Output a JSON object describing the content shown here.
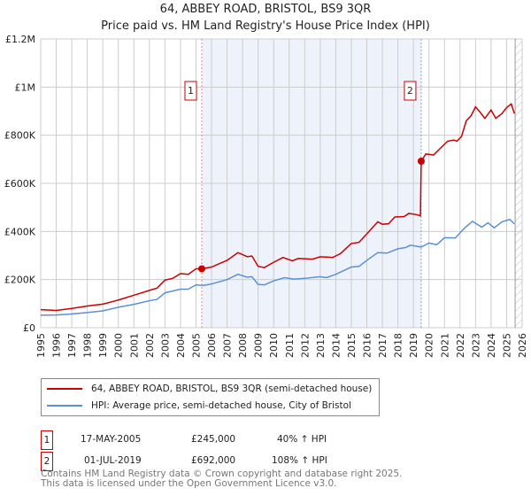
{
  "title": "64, ABBEY ROAD, BRISTOL, BS9 3QR",
  "subtitle": "Price paid vs. HM Land Registry's House Price Index (HPI)",
  "colors": {
    "property": "#cc0000",
    "hpi": "#5b8fd6",
    "shade": "#eef3fb",
    "grid": "#cccccc"
  },
  "legend": {
    "property": "64, ABBEY ROAD, BRISTOL, BS9 3QR (semi-detached house)",
    "hpi": "HPI: Average price, semi-detached house, City of Bristol"
  },
  "sales": [
    {
      "num": "1",
      "date": "17-MAY-2005",
      "price": "£245,000",
      "hpi": "40% ↑ HPI"
    },
    {
      "num": "2",
      "date": "01-JUL-2019",
      "price": "£692,000",
      "hpi": "108% ↑ HPI"
    }
  ],
  "footer": {
    "line1": "Contains HM Land Registry data © Crown copyright and database right 2025.",
    "line2": "This data is licensed under the Open Government Licence v3.0."
  },
  "chart_data": {
    "type": "line",
    "title": "64, ABBEY ROAD, BRISTOL, BS9 3QR",
    "xlim": [
      1995,
      2026
    ],
    "ylim": [
      0,
      1200000
    ],
    "xticks": [
      "1995",
      "1996",
      "1997",
      "1998",
      "1999",
      "2000",
      "2001",
      "2002",
      "2003",
      "2004",
      "2005",
      "2006",
      "2007",
      "2008",
      "2009",
      "2010",
      "2011",
      "2012",
      "2013",
      "2014",
      "2015",
      "2016",
      "2017",
      "2018",
      "2019",
      "2020",
      "2021",
      "2022",
      "2023",
      "2024",
      "2025",
      "2026"
    ],
    "yticks": [
      {
        "value": 0,
        "label": "£0"
      },
      {
        "value": 200000,
        "label": "£200K"
      },
      {
        "value": 400000,
        "label": "£400K"
      },
      {
        "value": 600000,
        "label": "£600K"
      },
      {
        "value": 800000,
        "label": "£800K"
      },
      {
        "value": 1000000,
        "label": "£1M"
      },
      {
        "value": 1200000,
        "label": "£1.2M"
      }
    ],
    "grid": true,
    "shaded_range": [
      2005.37,
      2019.5
    ],
    "forecast_hatch_from": 2025.55,
    "sale_markers": [
      {
        "label": "1",
        "x": 2005.37,
        "y": 245000
      },
      {
        "label": "2",
        "x": 2019.5,
        "y": 692000
      }
    ],
    "series": [
      {
        "name": "property",
        "points": [
          [
            1995,
            75000
          ],
          [
            1996,
            72000
          ],
          [
            1997,
            80000
          ],
          [
            1998,
            90000
          ],
          [
            1999,
            98000
          ],
          [
            2000,
            115000
          ],
          [
            2001,
            135000
          ],
          [
            2002,
            155000
          ],
          [
            2002.5,
            165000
          ],
          [
            2003,
            198000
          ],
          [
            2003.5,
            205000
          ],
          [
            2004,
            225000
          ],
          [
            2004.5,
            222000
          ],
          [
            2005,
            245000
          ],
          [
            2005.37,
            245000
          ],
          [
            2006,
            252000
          ],
          [
            2007,
            280000
          ],
          [
            2007.7,
            312000
          ],
          [
            2008.3,
            295000
          ],
          [
            2008.6,
            298000
          ],
          [
            2009,
            255000
          ],
          [
            2009.4,
            250000
          ],
          [
            2010,
            272000
          ],
          [
            2010.6,
            292000
          ],
          [
            2011.2,
            278000
          ],
          [
            2011.6,
            288000
          ],
          [
            2012.5,
            285000
          ],
          [
            2013,
            295000
          ],
          [
            2013.8,
            292000
          ],
          [
            2014.3,
            308000
          ],
          [
            2015,
            350000
          ],
          [
            2015.5,
            355000
          ],
          [
            2016,
            390000
          ],
          [
            2016.7,
            440000
          ],
          [
            2017,
            430000
          ],
          [
            2017.4,
            432000
          ],
          [
            2017.8,
            460000
          ],
          [
            2018.4,
            462000
          ],
          [
            2018.7,
            475000
          ],
          [
            2019.2,
            470000
          ],
          [
            2019.45,
            465000
          ],
          [
            2019.5,
            692000
          ],
          [
            2019.8,
            722000
          ],
          [
            2020.3,
            718000
          ],
          [
            2020.8,
            750000
          ],
          [
            2021.2,
            775000
          ],
          [
            2021.6,
            780000
          ],
          [
            2021.8,
            775000
          ],
          [
            2022.1,
            795000
          ],
          [
            2022.4,
            860000
          ],
          [
            2022.7,
            880000
          ],
          [
            2023,
            918000
          ],
          [
            2023.3,
            895000
          ],
          [
            2023.6,
            870000
          ],
          [
            2024,
            905000
          ],
          [
            2024.3,
            870000
          ],
          [
            2024.7,
            890000
          ],
          [
            2025,
            915000
          ],
          [
            2025.3,
            930000
          ],
          [
            2025.5,
            890000
          ]
        ]
      },
      {
        "name": "hpi",
        "points": [
          [
            1995,
            52000
          ],
          [
            1996,
            53000
          ],
          [
            1997,
            57000
          ],
          [
            1998,
            63000
          ],
          [
            1999,
            70000
          ],
          [
            2000,
            85000
          ],
          [
            2001,
            97000
          ],
          [
            2002,
            112000
          ],
          [
            2002.5,
            118000
          ],
          [
            2003,
            145000
          ],
          [
            2004,
            160000
          ],
          [
            2004.5,
            160000
          ],
          [
            2005,
            178000
          ],
          [
            2005.5,
            176000
          ],
          [
            2006,
            182000
          ],
          [
            2007,
            200000
          ],
          [
            2007.7,
            222000
          ],
          [
            2008.3,
            210000
          ],
          [
            2008.6,
            212000
          ],
          [
            2009,
            180000
          ],
          [
            2009.4,
            178000
          ],
          [
            2010,
            195000
          ],
          [
            2010.7,
            208000
          ],
          [
            2011.3,
            202000
          ],
          [
            2012,
            205000
          ],
          [
            2013,
            212000
          ],
          [
            2013.4,
            208000
          ],
          [
            2014,
            222000
          ],
          [
            2015,
            252000
          ],
          [
            2015.5,
            255000
          ],
          [
            2016,
            280000
          ],
          [
            2016.7,
            312000
          ],
          [
            2017.3,
            310000
          ],
          [
            2018,
            328000
          ],
          [
            2018.5,
            333000
          ],
          [
            2018.8,
            343000
          ],
          [
            2019.5,
            335000
          ],
          [
            2020,
            352000
          ],
          [
            2020.5,
            345000
          ],
          [
            2021,
            374000
          ],
          [
            2021.7,
            373000
          ],
          [
            2022.3,
            415000
          ],
          [
            2022.8,
            442000
          ],
          [
            2023.4,
            418000
          ],
          [
            2023.8,
            436000
          ],
          [
            2024.2,
            415000
          ],
          [
            2024.7,
            440000
          ],
          [
            2025.2,
            450000
          ],
          [
            2025.5,
            432000
          ]
        ]
      }
    ]
  }
}
